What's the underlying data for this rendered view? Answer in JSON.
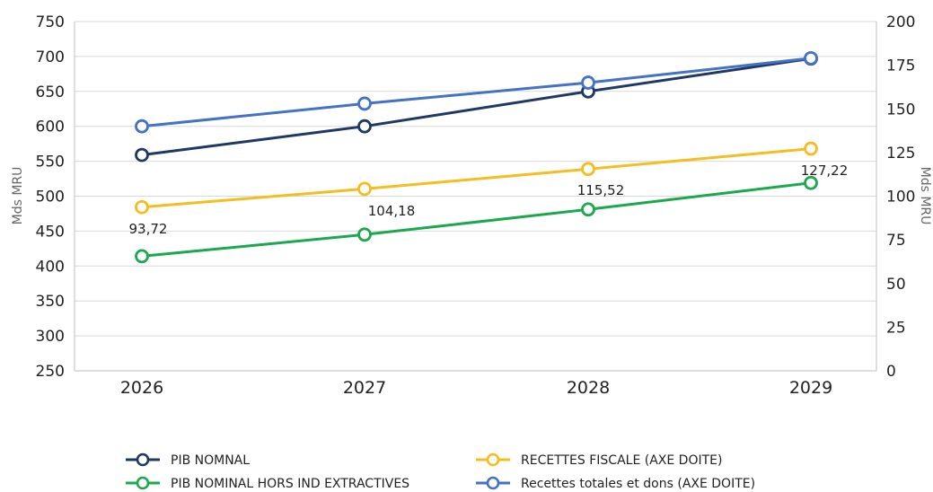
{
  "chart_data": {
    "type": "line",
    "categories": [
      "2026",
      "2027",
      "2028",
      "2029"
    ],
    "left_axis": {
      "label": "Mds MRU",
      "ylim": [
        250,
        750
      ],
      "ticks": [
        "250",
        "300",
        "350",
        "400",
        "450",
        "500",
        "550",
        "600",
        "650",
        "700",
        "750"
      ]
    },
    "right_axis": {
      "label": "Mds MRU",
      "ylim": [
        0,
        200
      ],
      "ticks": [
        "0",
        "25",
        "50",
        "75",
        "100",
        "125",
        "150",
        "175",
        "200"
      ]
    },
    "grid": true,
    "legend_position": "bottom",
    "series": [
      {
        "name": "PIB NOMNAL",
        "axis": "left",
        "color": "#1f3864",
        "values": [
          559,
          600,
          650,
          697
        ]
      },
      {
        "name": "PIB NOMINAL HORS IND EXTRACTIVES",
        "axis": "left",
        "color": "#1ca84f",
        "values": [
          414,
          445,
          481,
          519
        ]
      },
      {
        "name": "RECETTES FISCALE (AXE DOITE)",
        "axis": "right",
        "color": "#f5bd1f",
        "values": [
          93.72,
          104.18,
          115.52,
          127.22
        ],
        "data_labels": [
          "93,72",
          "104,18",
          "115,52",
          "127,22"
        ]
      },
      {
        "name": "Recettes totales et dons  (AXE DOITE)",
        "axis": "right",
        "color": "#4472c4",
        "values": [
          140,
          153,
          165,
          179
        ]
      }
    ]
  }
}
